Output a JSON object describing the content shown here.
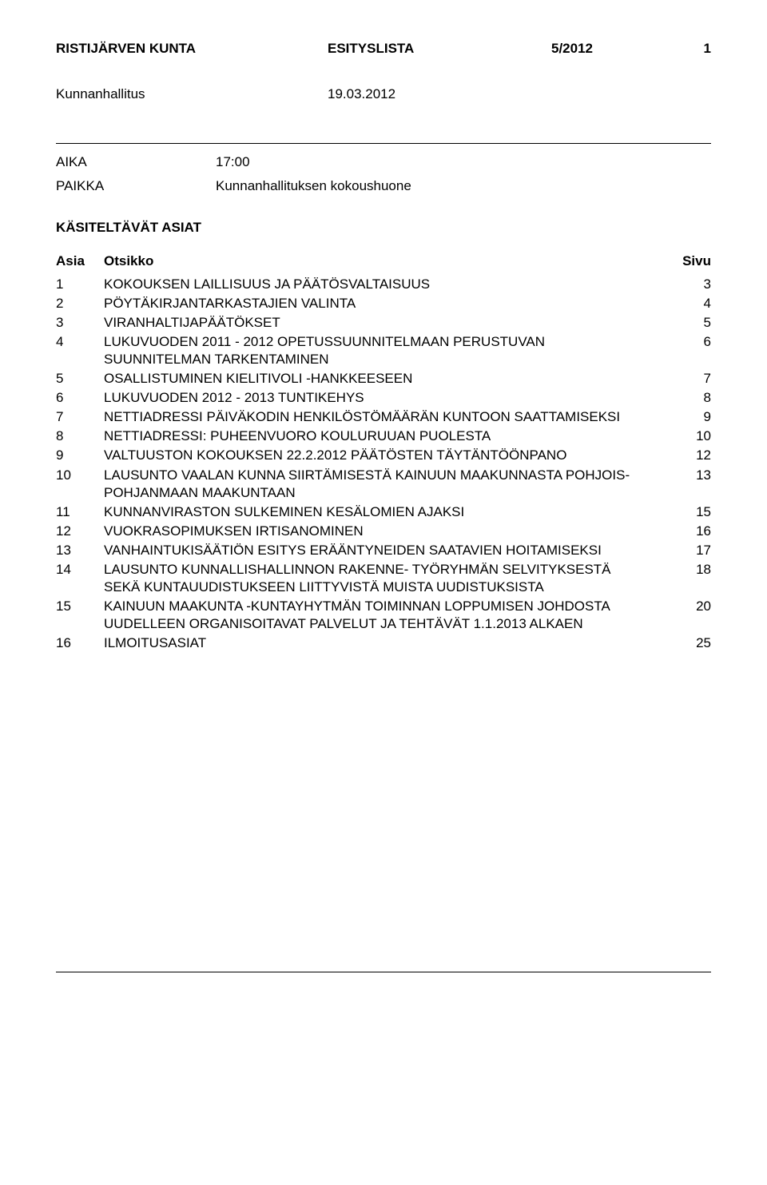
{
  "header": {
    "org": "RISTIJÄRVEN KUNTA",
    "doctype": "ESITYSLISTA",
    "docnum": "5/2012",
    "page": "1"
  },
  "meeting": {
    "body": "Kunnanhallitus",
    "date": "19.03.2012"
  },
  "time": {
    "label": "AIKA",
    "value": "17:00"
  },
  "place": {
    "label": "PAIKKA",
    "value": "Kunnanhallituksen kokoushuone"
  },
  "section_title": "KÄSITELTÄVÄT ASIAT",
  "columns": {
    "num": "Asia",
    "title": "Otsikko",
    "sivu": "Sivu"
  },
  "items": [
    {
      "num": "1",
      "title": "KOKOUKSEN LAILLISUUS JA PÄÄTÖSVALTAISUUS",
      "sivu": "3"
    },
    {
      "num": "2",
      "title": "PÖYTÄKIRJANTARKASTAJIEN VALINTA",
      "sivu": "4"
    },
    {
      "num": "3",
      "title": "VIRANHALTIJAPÄÄTÖKSET",
      "sivu": "5"
    },
    {
      "num": "4",
      "title": "LUKUVUODEN 2011 - 2012 OPETUSSUUNNITELMAAN PERUSTUVAN SUUNNITELMAN TARKENTAMINEN",
      "sivu": "6"
    },
    {
      "num": "5",
      "title": "OSALLISTUMINEN KIELITIVOLI -HANKKEESEEN",
      "sivu": "7"
    },
    {
      "num": "6",
      "title": "LUKUVUODEN 2012 - 2013 TUNTIKEHYS",
      "sivu": "8"
    },
    {
      "num": "7",
      "title": "NETTIADRESSI PÄIVÄKODIN HENKILÖSTÖMÄÄRÄN KUNTOON SAATTAMISEKSI",
      "sivu": "9"
    },
    {
      "num": "8",
      "title": "NETTIADRESSI:  PUHEENVUORO KOULURUUAN PUOLESTA",
      "sivu": "10"
    },
    {
      "num": "9",
      "title": "VALTUUSTON KOKOUKSEN 22.2.2012 PÄÄTÖSTEN TÄYTÄNTÖÖNPANO",
      "sivu": "12"
    },
    {
      "num": "10",
      "title": "LAUSUNTO VAALAN KUNNA SIIRTÄMISESTÄ KAINUUN MAAKUNNASTA POHJOIS-POHJANMAAN MAAKUNTAAN",
      "sivu": "13"
    },
    {
      "num": "11",
      "title": "KUNNANVIRASTON SULKEMINEN KESÄLOMIEN AJAKSI",
      "sivu": "15"
    },
    {
      "num": "12",
      "title": "VUOKRASOPIMUKSEN IRTISANOMINEN",
      "sivu": "16"
    },
    {
      "num": "13",
      "title": "VANHAINTUKISÄÄTIÖN ESITYS ERÄÄNTYNEIDEN SAATAVIEN HOITAMISEKSI",
      "sivu": "17"
    },
    {
      "num": "14",
      "title": "LAUSUNTO KUNNALLISHALLINNON RAKENNE- TYÖRYHMÄN SELVITYKSESTÄ SEKÄ KUNTAUUDISTUKSEEN LIITTYVISTÄ MUISTA UUDISTUKSISTA",
      "sivu": "18"
    },
    {
      "num": "15",
      "title": "KAINUUN MAAKUNTA -KUNTAYHYTMÄN TOIMINNAN LOPPUMISEN JOHDOSTA UUDELLEEN ORGANISOITAVAT PALVELUT JA TEHTÄVÄT 1.1.2013 ALKAEN",
      "sivu": "20"
    },
    {
      "num": "16",
      "title": "ILMOITUSASIAT",
      "sivu": "25"
    }
  ]
}
